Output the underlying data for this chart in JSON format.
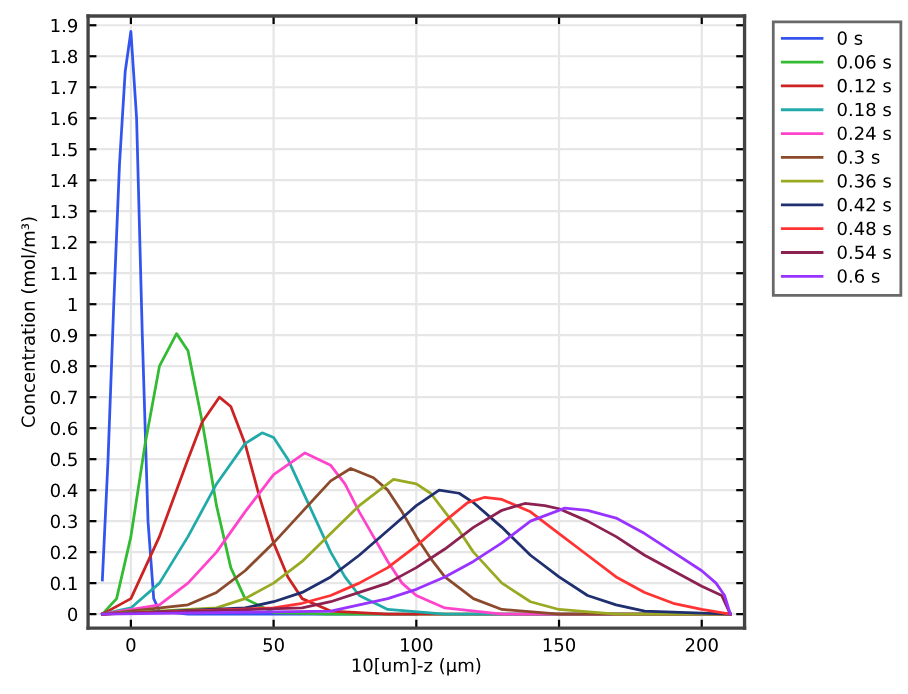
{
  "chart_data": {
    "type": "line",
    "xlabel": "10[um]-z (µm)",
    "ylabel": "Concentration (mol/m³)",
    "xlim": [
      -15,
      215
    ],
    "ylim": [
      -0.045,
      1.93
    ],
    "xticks": [
      0,
      50,
      100,
      150,
      200
    ],
    "yticks": [
      0,
      0.1,
      0.2,
      0.3,
      0.4,
      0.5,
      0.6,
      0.7,
      0.8,
      0.9,
      1,
      1.1,
      1.2,
      1.3,
      1.4,
      1.5,
      1.6,
      1.7,
      1.8,
      1.9
    ],
    "grid": true,
    "legend": "top right",
    "marker": "none",
    "line_style": "solid",
    "series": [
      {
        "name": "0 s",
        "color": "#3355ee",
        "x": [
          -10,
          -8,
          -6,
          -4,
          -2,
          0,
          2,
          4,
          6,
          8,
          10,
          20,
          50,
          100
        ],
        "values": [
          0.11,
          0.5,
          1.0,
          1.45,
          1.75,
          1.88,
          1.6,
          0.9,
          0.3,
          0.05,
          0.01,
          0,
          0,
          0
        ]
      },
      {
        "name": "0.06 s",
        "color": "#33bb33",
        "x": [
          -10,
          -5,
          0,
          5,
          10,
          16,
          20,
          25,
          30,
          35,
          40,
          50,
          70,
          210
        ],
        "values": [
          0,
          0.05,
          0.25,
          0.55,
          0.8,
          0.905,
          0.85,
          0.62,
          0.35,
          0.15,
          0.05,
          0.005,
          0,
          0
        ]
      },
      {
        "name": "0.12 s",
        "color": "#cc2222",
        "x": [
          -10,
          0,
          10,
          20,
          25,
          31,
          35,
          40,
          45,
          50,
          55,
          60,
          70,
          90,
          210
        ],
        "values": [
          0,
          0.05,
          0.25,
          0.5,
          0.62,
          0.7,
          0.67,
          0.55,
          0.38,
          0.23,
          0.12,
          0.05,
          0.01,
          0,
          0
        ]
      },
      {
        "name": "0.18 s",
        "color": "#22aaaa",
        "x": [
          -10,
          0,
          10,
          20,
          30,
          40,
          46,
          50,
          55,
          60,
          65,
          70,
          75,
          80,
          90,
          110,
          210
        ],
        "values": [
          0,
          0.02,
          0.1,
          0.25,
          0.42,
          0.55,
          0.585,
          0.57,
          0.5,
          0.4,
          0.3,
          0.2,
          0.12,
          0.06,
          0.015,
          0,
          0
        ]
      },
      {
        "name": "0.24 s",
        "color": "#ff44cc",
        "x": [
          -10,
          10,
          20,
          30,
          40,
          50,
          61,
          70,
          75,
          80,
          85,
          90,
          95,
          100,
          110,
          130,
          210
        ],
        "values": [
          0,
          0.03,
          0.1,
          0.2,
          0.33,
          0.45,
          0.52,
          0.48,
          0.42,
          0.33,
          0.25,
          0.17,
          0.1,
          0.06,
          0.02,
          0,
          0
        ]
      },
      {
        "name": "0.3 s",
        "color": "#8b4a2b",
        "x": [
          -10,
          20,
          30,
          40,
          50,
          60,
          70,
          77,
          85,
          90,
          95,
          100,
          105,
          110,
          120,
          130,
          150,
          210
        ],
        "values": [
          0,
          0.03,
          0.07,
          0.14,
          0.23,
          0.33,
          0.43,
          0.47,
          0.44,
          0.4,
          0.33,
          0.25,
          0.18,
          0.12,
          0.05,
          0.015,
          0,
          0
        ]
      },
      {
        "name": "0.36 s",
        "color": "#99aa22",
        "x": [
          -10,
          30,
          40,
          50,
          60,
          70,
          80,
          92,
          100,
          105,
          110,
          115,
          120,
          130,
          140,
          150,
          170,
          210
        ],
        "values": [
          0,
          0.02,
          0.05,
          0.1,
          0.17,
          0.26,
          0.35,
          0.435,
          0.42,
          0.39,
          0.33,
          0.27,
          0.2,
          0.1,
          0.04,
          0.015,
          0,
          0
        ]
      },
      {
        "name": "0.42 s",
        "color": "#1f2f6f",
        "x": [
          -10,
          40,
          50,
          60,
          70,
          80,
          90,
          100,
          108,
          115,
          120,
          130,
          140,
          150,
          160,
          170,
          180,
          200,
          210
        ],
        "values": [
          0,
          0.02,
          0.04,
          0.07,
          0.12,
          0.19,
          0.27,
          0.35,
          0.4,
          0.39,
          0.36,
          0.28,
          0.19,
          0.12,
          0.06,
          0.03,
          0.01,
          0.003,
          0
        ]
      },
      {
        "name": "0.48 s",
        "color": "#ff3333",
        "x": [
          -10,
          50,
          60,
          70,
          80,
          90,
          100,
          110,
          118,
          124,
          130,
          140,
          150,
          160,
          170,
          180,
          190,
          200,
          210
        ],
        "values": [
          0,
          0.02,
          0.035,
          0.06,
          0.1,
          0.15,
          0.22,
          0.3,
          0.36,
          0.377,
          0.37,
          0.33,
          0.26,
          0.19,
          0.12,
          0.07,
          0.035,
          0.015,
          0
        ]
      },
      {
        "name": "0.54 s",
        "color": "#8b2252",
        "x": [
          -10,
          60,
          70,
          80,
          90,
          100,
          110,
          120,
          130,
          138,
          145,
          150,
          160,
          170,
          180,
          190,
          200,
          207,
          210
        ],
        "values": [
          0,
          0.02,
          0.04,
          0.07,
          0.1,
          0.15,
          0.21,
          0.28,
          0.335,
          0.357,
          0.35,
          0.34,
          0.3,
          0.25,
          0.19,
          0.14,
          0.09,
          0.06,
          0
        ]
      },
      {
        "name": "0.6 s",
        "color": "#9933ff",
        "x": [
          -10,
          70,
          80,
          90,
          100,
          110,
          120,
          130,
          140,
          152,
          160,
          170,
          180,
          190,
          200,
          205,
          208,
          210
        ],
        "values": [
          0,
          0.01,
          0.03,
          0.05,
          0.08,
          0.12,
          0.17,
          0.23,
          0.3,
          0.342,
          0.335,
          0.31,
          0.26,
          0.2,
          0.14,
          0.1,
          0.06,
          0
        ]
      }
    ]
  }
}
